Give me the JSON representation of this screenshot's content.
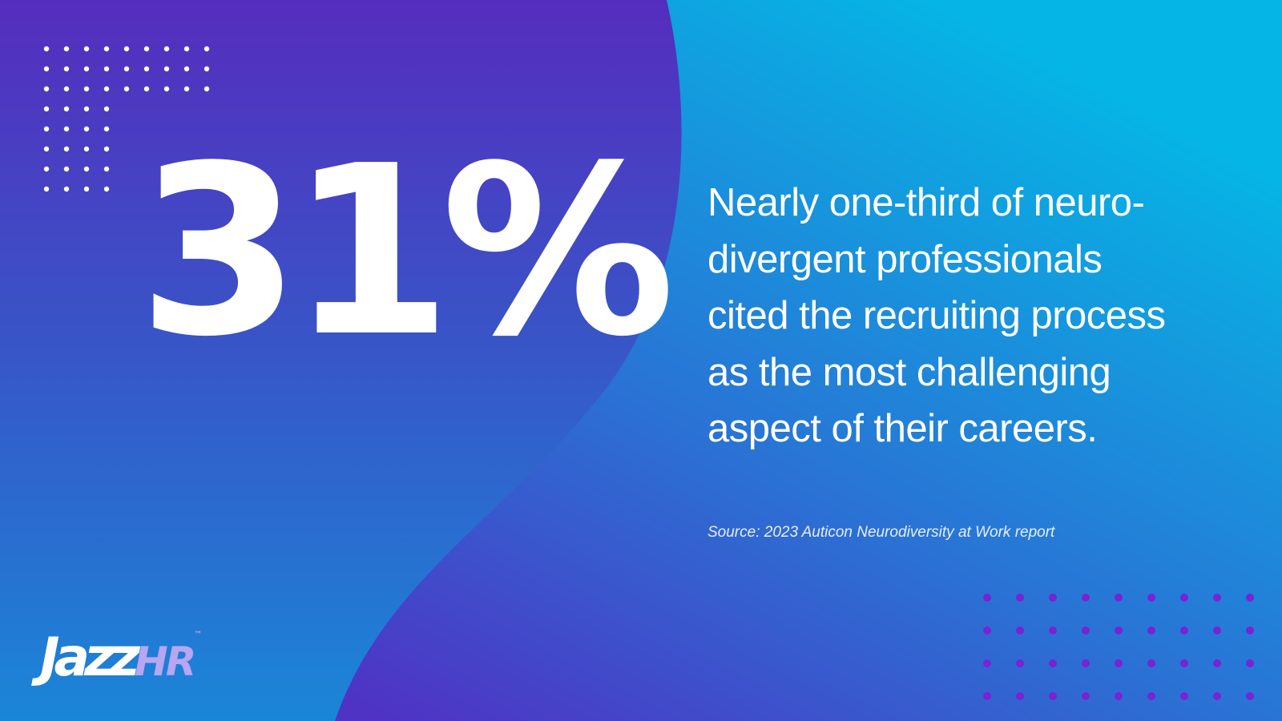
{
  "stat": "31%",
  "statement": {
    "lines": [
      "Nearly one-third of neuro-",
      "divergent professionals",
      "cited the recruiting process",
      "as the most challenging",
      "aspect of their careers."
    ]
  },
  "source": "Source: 2023 Auticon Neurodiversity at Work report",
  "logo": {
    "word": "Jazz",
    "accent": "HR",
    "mark": "™"
  }
}
